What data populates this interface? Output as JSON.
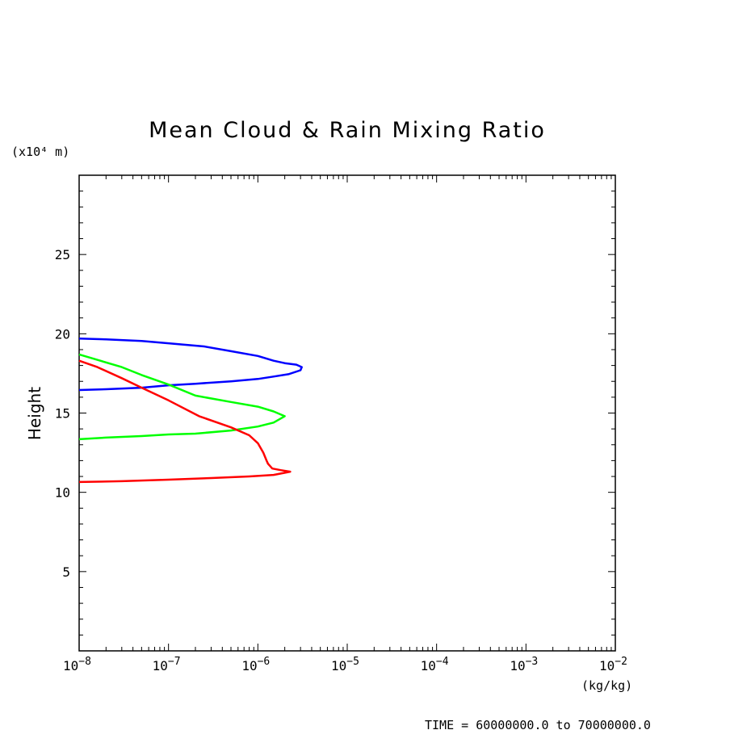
{
  "chart_data": {
    "type": "line",
    "title": "Mean Cloud & Rain Mixing Ratio",
    "ylabel": "Height",
    "y_unit": "(x10⁴ m)",
    "x_unit": "(kg/kg)",
    "x_scale": "log",
    "xlim": [
      1e-08,
      0.01
    ],
    "ylim": [
      0,
      30
    ],
    "x_tick_labels": [
      {
        "base": "10",
        "exp": "−8"
      },
      {
        "base": "10",
        "exp": "−7"
      },
      {
        "base": "10",
        "exp": "−6"
      },
      {
        "base": "10",
        "exp": "−5"
      },
      {
        "base": "10",
        "exp": "−4"
      },
      {
        "base": "10",
        "exp": "−3"
      },
      {
        "base": "10",
        "exp": "−2"
      }
    ],
    "y_ticks": [
      5,
      10,
      15,
      20,
      25
    ],
    "footer": "TIME = 60000000.0 to 70000000.0",
    "grid": false,
    "series": [
      {
        "color": "#0000ff",
        "x": [
          1e-08,
          2e-08,
          5e-08,
          1e-07,
          2.5e-07,
          5e-07,
          1e-06,
          1.5e-06,
          2e-06,
          2.7e-06,
          3.1e-06,
          3e-06,
          2.2e-06,
          1.5e-06,
          1e-06,
          5e-07,
          2e-07,
          1e-07,
          5e-08,
          2e-08,
          1e-08
        ],
        "y": [
          19.7,
          19.65,
          19.55,
          19.4,
          19.2,
          18.9,
          18.6,
          18.3,
          18.15,
          18.05,
          17.9,
          17.7,
          17.45,
          17.3,
          17.15,
          17.0,
          16.85,
          16.75,
          16.6,
          16.5,
          16.45
        ]
      },
      {
        "color": "#00ff00",
        "x": [
          1e-08,
          1.5e-08,
          3e-08,
          5e-08,
          1e-07,
          2e-07,
          5e-07,
          1e-06,
          1.5e-06,
          2e-06,
          1.5e-06,
          1e-06,
          5e-07,
          2e-07,
          1e-07,
          5e-08,
          2e-08,
          1e-08
        ],
        "y": [
          18.7,
          18.4,
          17.9,
          17.4,
          16.8,
          16.1,
          15.7,
          15.4,
          15.1,
          14.8,
          14.4,
          14.15,
          13.9,
          13.7,
          13.65,
          13.55,
          13.45,
          13.35
        ]
      },
      {
        "color": "#ff0000",
        "x": [
          1e-08,
          1.6e-08,
          3e-08,
          5e-08,
          1e-07,
          2.2e-07,
          5e-07,
          8e-07,
          1e-06,
          1.15e-06,
          1.25e-06,
          1.3e-06,
          1.45e-06,
          1.8e-06,
          2.3e-06,
          1.5e-06,
          8e-07,
          3e-07,
          1e-07,
          3e-08,
          1e-08
        ],
        "y": [
          18.3,
          17.9,
          17.2,
          16.6,
          15.8,
          14.8,
          14.1,
          13.6,
          13.1,
          12.5,
          12.0,
          11.8,
          11.5,
          11.4,
          11.3,
          11.1,
          11.0,
          10.9,
          10.8,
          10.7,
          10.65
        ]
      }
    ]
  }
}
